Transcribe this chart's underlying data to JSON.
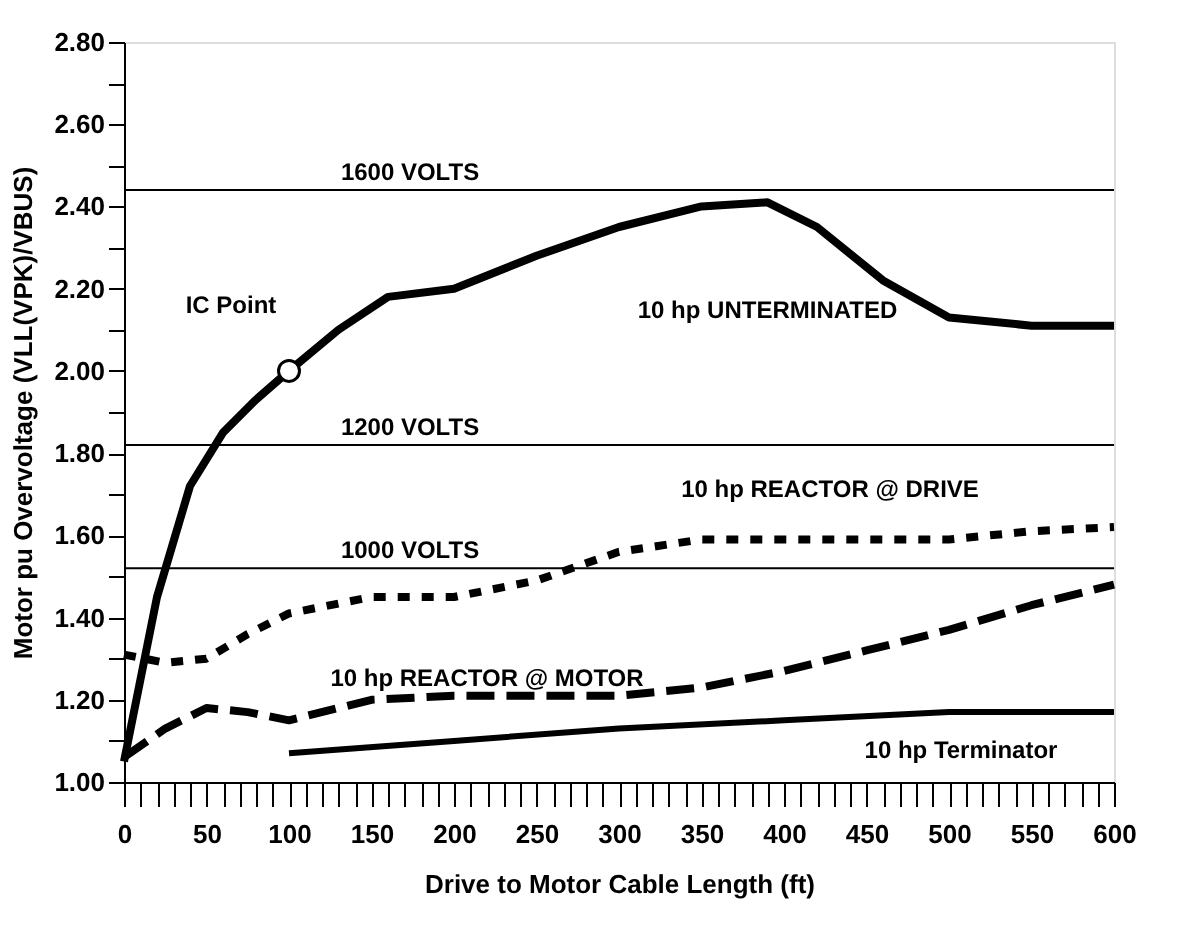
{
  "chart_data": {
    "type": "line",
    "xlabel": "Drive to Motor Cable Length (ft)",
    "ylabel": "Motor pu Overvoltage (VLL(VPK)/VBUS)",
    "xlim": [
      0,
      600
    ],
    "ylim": [
      1.0,
      2.8
    ],
    "xticks": [
      0,
      {
        "value": 10,
        "label": null
      },
      {
        "value": 20,
        "label": null
      },
      {
        "value": 30,
        "label": null
      },
      {
        "value": 40,
        "label": null
      },
      50,
      {
        "value": 60,
        "label": null
      },
      {
        "value": 70,
        "label": null
      },
      {
        "value": 80,
        "label": null
      },
      {
        "value": 90,
        "label": null
      },
      100,
      {
        "value": 110,
        "label": null
      },
      {
        "value": 120,
        "label": null
      },
      {
        "value": 130,
        "label": null
      },
      {
        "value": 140,
        "label": null
      },
      150,
      {
        "value": 160,
        "label": null
      },
      {
        "value": 170,
        "label": null
      },
      {
        "value": 180,
        "label": null
      },
      {
        "value": 190,
        "label": null
      },
      200,
      {
        "value": 210,
        "label": null
      },
      {
        "value": 220,
        "label": null
      },
      {
        "value": 230,
        "label": null
      },
      {
        "value": 240,
        "label": null
      },
      250,
      {
        "value": 260,
        "label": null
      },
      {
        "value": 270,
        "label": null
      },
      {
        "value": 280,
        "label": null
      },
      {
        "value": 290,
        "label": null
      },
      300,
      {
        "value": 310,
        "label": null
      },
      {
        "value": 320,
        "label": null
      },
      {
        "value": 330,
        "label": null
      },
      {
        "value": 340,
        "label": null
      },
      350,
      {
        "value": 360,
        "label": null
      },
      {
        "value": 370,
        "label": null
      },
      {
        "value": 380,
        "label": null
      },
      {
        "value": 390,
        "label": null
      },
      400,
      {
        "value": 410,
        "label": null
      },
      {
        "value": 420,
        "label": null
      },
      {
        "value": 430,
        "label": null
      },
      {
        "value": 440,
        "label": null
      },
      450,
      {
        "value": 460,
        "label": null
      },
      {
        "value": 470,
        "label": null
      },
      {
        "value": 480,
        "label": null
      },
      {
        "value": 490,
        "label": null
      },
      500,
      {
        "value": 510,
        "label": null
      },
      {
        "value": 520,
        "label": null
      },
      {
        "value": 530,
        "label": null
      },
      {
        "value": 540,
        "label": null
      },
      550,
      {
        "value": 560,
        "label": null
      },
      {
        "value": 570,
        "label": null
      },
      {
        "value": 580,
        "label": null
      },
      {
        "value": 590,
        "label": null
      },
      600
    ],
    "yticks": [
      {
        "value": 1.0,
        "label": "1.00"
      },
      {
        "value": 1.1,
        "label": null
      },
      {
        "value": 1.2,
        "label": "1.20"
      },
      {
        "value": 1.3,
        "label": null
      },
      {
        "value": 1.4,
        "label": "1.40"
      },
      {
        "value": 1.5,
        "label": null
      },
      {
        "value": 1.6,
        "label": "1.60"
      },
      {
        "value": 1.7,
        "label": null
      },
      {
        "value": 1.8,
        "label": "1.80"
      },
      {
        "value": 1.9,
        "label": null
      },
      {
        "value": 2.0,
        "label": "2.00"
      },
      {
        "value": 2.1,
        "label": null
      },
      {
        "value": 2.2,
        "label": "2.20"
      },
      {
        "value": 2.3,
        "label": null
      },
      {
        "value": 2.4,
        "label": "2.40"
      },
      {
        "value": 2.5,
        "label": null
      },
      {
        "value": 2.6,
        "label": "2.60"
      },
      {
        "value": 2.7,
        "label": null
      },
      {
        "value": 2.8,
        "label": "2.80"
      }
    ],
    "grid": false,
    "marker": "none",
    "series": [
      {
        "name": "10 hp UNTERMINATED",
        "color": "#000000",
        "line_style": "solid",
        "x": [
          0,
          20,
          40,
          60,
          80,
          100,
          130,
          160,
          200,
          250,
          300,
          350,
          390,
          420,
          460,
          500,
          550,
          600
        ],
        "values": [
          1.05,
          1.45,
          1.72,
          1.85,
          1.93,
          2.0,
          2.1,
          2.18,
          2.2,
          2.28,
          2.35,
          2.4,
          2.41,
          2.35,
          2.22,
          2.13,
          2.11,
          2.11
        ]
      },
      {
        "name": "10 hp REACTOR @ DRIVE",
        "color": "#000000",
        "line_style": "dotted",
        "x": [
          0,
          25,
          50,
          75,
          100,
          150,
          200,
          250,
          300,
          350,
          400,
          450,
          500,
          550,
          600
        ],
        "values": [
          1.31,
          1.29,
          1.3,
          1.36,
          1.41,
          1.45,
          1.45,
          1.49,
          1.56,
          1.59,
          1.59,
          1.59,
          1.59,
          1.61,
          1.62
        ]
      },
      {
        "name": "10 hp REACTOR @ MOTOR",
        "color": "#000000",
        "line_style": "dashed",
        "x": [
          0,
          25,
          50,
          75,
          100,
          150,
          200,
          250,
          300,
          350,
          400,
          450,
          500,
          550,
          600
        ],
        "values": [
          1.06,
          1.13,
          1.18,
          1.17,
          1.15,
          1.2,
          1.21,
          1.21,
          1.21,
          1.23,
          1.27,
          1.32,
          1.37,
          1.43,
          1.48
        ]
      },
      {
        "name": "10 hp Terminator",
        "color": "#000000",
        "line_style": "solid",
        "x": [
          100,
          200,
          300,
          400,
          500,
          600
        ],
        "values": [
          1.07,
          1.1,
          1.13,
          1.15,
          1.17,
          1.17
        ]
      }
    ],
    "ref_lines": [
      {
        "axis": "y",
        "value": 2.44,
        "label": "1600 VOLTS"
      },
      {
        "axis": "y",
        "value": 1.82,
        "label": "1200 VOLTS"
      },
      {
        "axis": "y",
        "value": 1.52,
        "label": "1000 VOLTS"
      }
    ],
    "annotations": [
      {
        "text": "IC Point",
        "x": 100,
        "y": 2.0
      }
    ]
  }
}
